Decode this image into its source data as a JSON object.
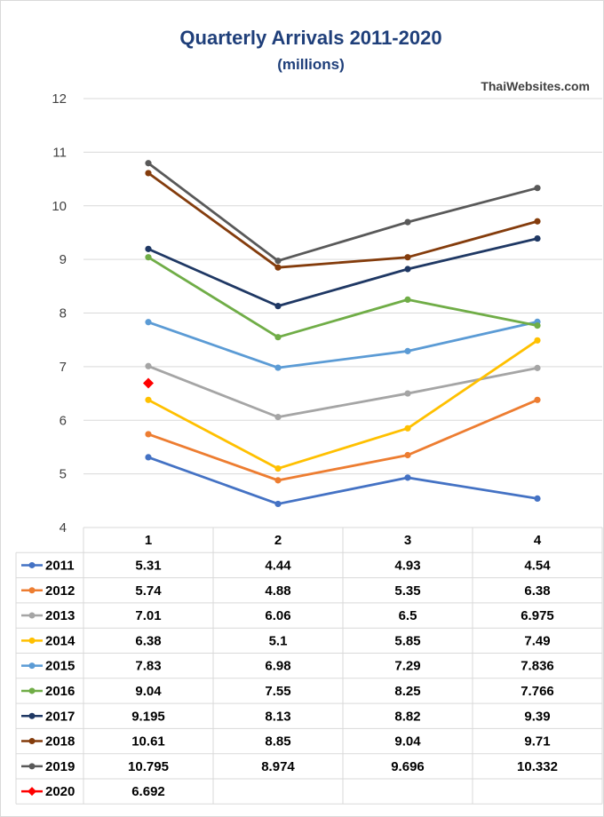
{
  "chart_data": {
    "type": "line",
    "title": "Quarterly Arrivals 2011-2020",
    "subtitle": "(millions)",
    "watermark": "ThaiWebsites.com",
    "categories": [
      "1",
      "2",
      "3",
      "4"
    ],
    "ylim": [
      4,
      12
    ],
    "yticks": [
      4,
      5,
      6,
      7,
      8,
      9,
      10,
      11,
      12
    ],
    "grid": true,
    "legend_placement": "data-table-left",
    "series": [
      {
        "name": "2011",
        "color": "#4472c4",
        "marker": "circle",
        "values": [
          5.31,
          4.44,
          4.93,
          4.54
        ],
        "labels": [
          "5.31",
          "4.44",
          "4.93",
          "4.54"
        ]
      },
      {
        "name": "2012",
        "color": "#ed7d31",
        "marker": "circle",
        "values": [
          5.74,
          4.88,
          5.35,
          6.38
        ],
        "labels": [
          "5.74",
          "4.88",
          "5.35",
          "6.38"
        ]
      },
      {
        "name": "2013",
        "color": "#a5a5a5",
        "marker": "circle",
        "values": [
          7.01,
          6.06,
          6.5,
          6.975
        ],
        "labels": [
          "7.01",
          "6.06",
          "6.5",
          "6.975"
        ]
      },
      {
        "name": "2014",
        "color": "#ffc000",
        "marker": "circle",
        "values": [
          6.38,
          5.1,
          5.85,
          7.49
        ],
        "labels": [
          "6.38",
          "5.1",
          "5.85",
          "7.49"
        ]
      },
      {
        "name": "2015",
        "color": "#5b9bd5",
        "marker": "circle",
        "values": [
          7.83,
          6.98,
          7.29,
          7.836
        ],
        "labels": [
          "7.83",
          "6.98",
          "7.29",
          "7.836"
        ]
      },
      {
        "name": "2016",
        "color": "#70ad47",
        "marker": "circle",
        "values": [
          9.04,
          7.55,
          8.25,
          7.766
        ],
        "labels": [
          "9.04",
          "7.55",
          "8.25",
          "7.766"
        ]
      },
      {
        "name": "2017",
        "color": "#1f3864",
        "marker": "circle",
        "values": [
          9.195,
          8.13,
          8.82,
          9.39
        ],
        "labels": [
          "9.195",
          "8.13",
          "8.82",
          "9.39"
        ]
      },
      {
        "name": "2018",
        "color": "#843c0c",
        "marker": "circle",
        "values": [
          10.61,
          8.85,
          9.04,
          9.71
        ],
        "labels": [
          "10.61",
          "8.85",
          "9.04",
          "9.71"
        ]
      },
      {
        "name": "2019",
        "color": "#595959",
        "marker": "circle",
        "values": [
          10.795,
          8.974,
          9.696,
          10.332
        ],
        "labels": [
          "10.795",
          "8.974",
          "9.696",
          "10.332"
        ]
      },
      {
        "name": "2020",
        "color": "#ff0000",
        "marker": "diamond",
        "values": [
          6.692,
          null,
          null,
          null
        ],
        "labels": [
          "6.692",
          "",
          "",
          ""
        ]
      }
    ]
  }
}
